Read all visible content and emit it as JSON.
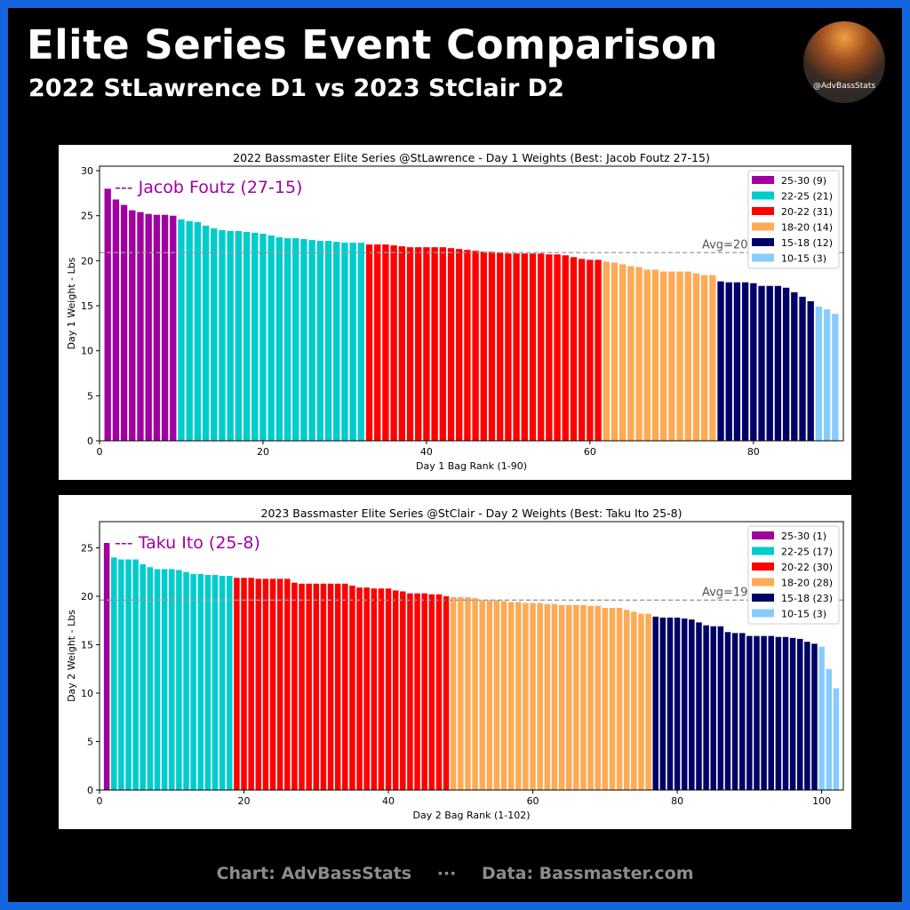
{
  "header": {
    "title": "Elite Series Event Comparison",
    "subtitle": "2022 StLawrence D1 vs 2023 StClair D2",
    "logo_handle": "@AdvBassStats"
  },
  "footer": {
    "chart_credit": "Chart: AdvBassStats",
    "separator": "···",
    "data_credit": "Data: Bassmaster.com"
  },
  "colors": {
    "25-30": "#a000a0",
    "22-25": "#00cccc",
    "20-22": "#ff0000",
    "18-20": "#ffaa55",
    "15-18": "#000066",
    "10-15": "#88ccff",
    "frame": "#1565e0"
  },
  "chart_data": [
    {
      "type": "bar",
      "title": "2022 Bassmaster Elite Series @StLawrence - Day 1 Weights (Best: Jacob Foutz 27-15)",
      "xlabel": "Day 1 Bag Rank (1-90)",
      "ylabel": "Day 1 Weight - Lbs",
      "xlim": [
        0,
        91
      ],
      "ylim": [
        0,
        30.5
      ],
      "xticks": [
        0,
        20,
        40,
        60,
        80
      ],
      "yticks": [
        0,
        5,
        10,
        15,
        20,
        25,
        30
      ],
      "annotation": "--- Jacob Foutz (27-15)",
      "avg_label": "Avg=20.9lbs",
      "avg": 20.9,
      "legend_position": "top-right",
      "legend": [
        {
          "key": "25-30",
          "label": "25-30 (9)"
        },
        {
          "key": "22-25",
          "label": "22-25 (21)"
        },
        {
          "key": "20-22",
          "label": "20-22 (31)"
        },
        {
          "key": "18-20",
          "label": "18-20 (14)"
        },
        {
          "key": "15-18",
          "label": "15-18 (12)"
        },
        {
          "key": "10-15",
          "label": "10-15 (3)"
        }
      ],
      "values": [
        28.0,
        26.8,
        26.2,
        25.6,
        25.4,
        25.2,
        25.1,
        25.1,
        25.0,
        24.6,
        24.4,
        24.3,
        23.9,
        23.6,
        23.4,
        23.3,
        23.3,
        23.2,
        23.1,
        23.0,
        22.8,
        22.6,
        22.5,
        22.5,
        22.4,
        22.3,
        22.2,
        22.2,
        22.1,
        22.0,
        22.0,
        22.0,
        21.8,
        21.8,
        21.8,
        21.7,
        21.6,
        21.5,
        21.5,
        21.5,
        21.5,
        21.5,
        21.4,
        21.3,
        21.2,
        21.1,
        21.0,
        21.0,
        20.9,
        20.8,
        20.8,
        20.8,
        20.8,
        20.8,
        20.7,
        20.7,
        20.6,
        20.4,
        20.2,
        20.1,
        20.1,
        19.9,
        19.8,
        19.6,
        19.4,
        19.3,
        19.0,
        19.0,
        18.8,
        18.8,
        18.8,
        18.8,
        18.6,
        18.4,
        18.4,
        17.7,
        17.6,
        17.6,
        17.6,
        17.5,
        17.2,
        17.2,
        17.2,
        17.0,
        16.5,
        16.0,
        15.5,
        14.9,
        14.6,
        14.1
      ]
    },
    {
      "type": "bar",
      "title": "2023 Bassmaster Elite Series @StClair - Day 2 Weights (Best: Taku Ito 25-8)",
      "xlabel": "Day 2 Bag Rank (1-102)",
      "ylabel": "Day 2 Weight - Lbs",
      "xlim": [
        0,
        103
      ],
      "ylim": [
        0,
        27.7
      ],
      "xticks": [
        0,
        20,
        40,
        60,
        80,
        100
      ],
      "yticks": [
        0,
        5,
        10,
        15,
        20,
        25
      ],
      "annotation": "--- Taku Ito (25-8)",
      "avg_label": "Avg=19.6lbs",
      "avg": 19.6,
      "legend_position": "top-right",
      "legend": [
        {
          "key": "25-30",
          "label": "25-30 (1)"
        },
        {
          "key": "22-25",
          "label": "22-25 (17)"
        },
        {
          "key": "20-22",
          "label": "20-22 (30)"
        },
        {
          "key": "18-20",
          "label": "18-20 (28)"
        },
        {
          "key": "15-18",
          "label": "15-18 (23)"
        },
        {
          "key": "10-15",
          "label": "10-15 (3)"
        }
      ],
      "values": [
        25.5,
        24.0,
        23.8,
        23.8,
        23.8,
        23.3,
        23.0,
        22.8,
        22.8,
        22.8,
        22.7,
        22.5,
        22.3,
        22.3,
        22.2,
        22.2,
        22.1,
        22.1,
        21.9,
        21.9,
        21.9,
        21.8,
        21.8,
        21.8,
        21.8,
        21.8,
        21.4,
        21.3,
        21.3,
        21.3,
        21.3,
        21.3,
        21.3,
        21.3,
        21.1,
        20.9,
        20.9,
        20.8,
        20.8,
        20.8,
        20.6,
        20.5,
        20.3,
        20.3,
        20.3,
        20.2,
        20.2,
        20.0,
        19.9,
        19.9,
        19.9,
        19.8,
        19.6,
        19.6,
        19.6,
        19.5,
        19.4,
        19.4,
        19.3,
        19.3,
        19.3,
        19.2,
        19.2,
        19.1,
        19.1,
        19.1,
        19.1,
        19.0,
        19.0,
        18.8,
        18.8,
        18.8,
        18.6,
        18.4,
        18.2,
        18.2,
        17.9,
        17.8,
        17.8,
        17.8,
        17.7,
        17.6,
        17.3,
        17.0,
        16.9,
        16.9,
        16.3,
        16.2,
        16.2,
        15.9,
        15.9,
        15.9,
        15.9,
        15.8,
        15.8,
        15.7,
        15.6,
        15.3,
        15.1,
        14.8,
        12.5,
        10.5
      ]
    }
  ]
}
